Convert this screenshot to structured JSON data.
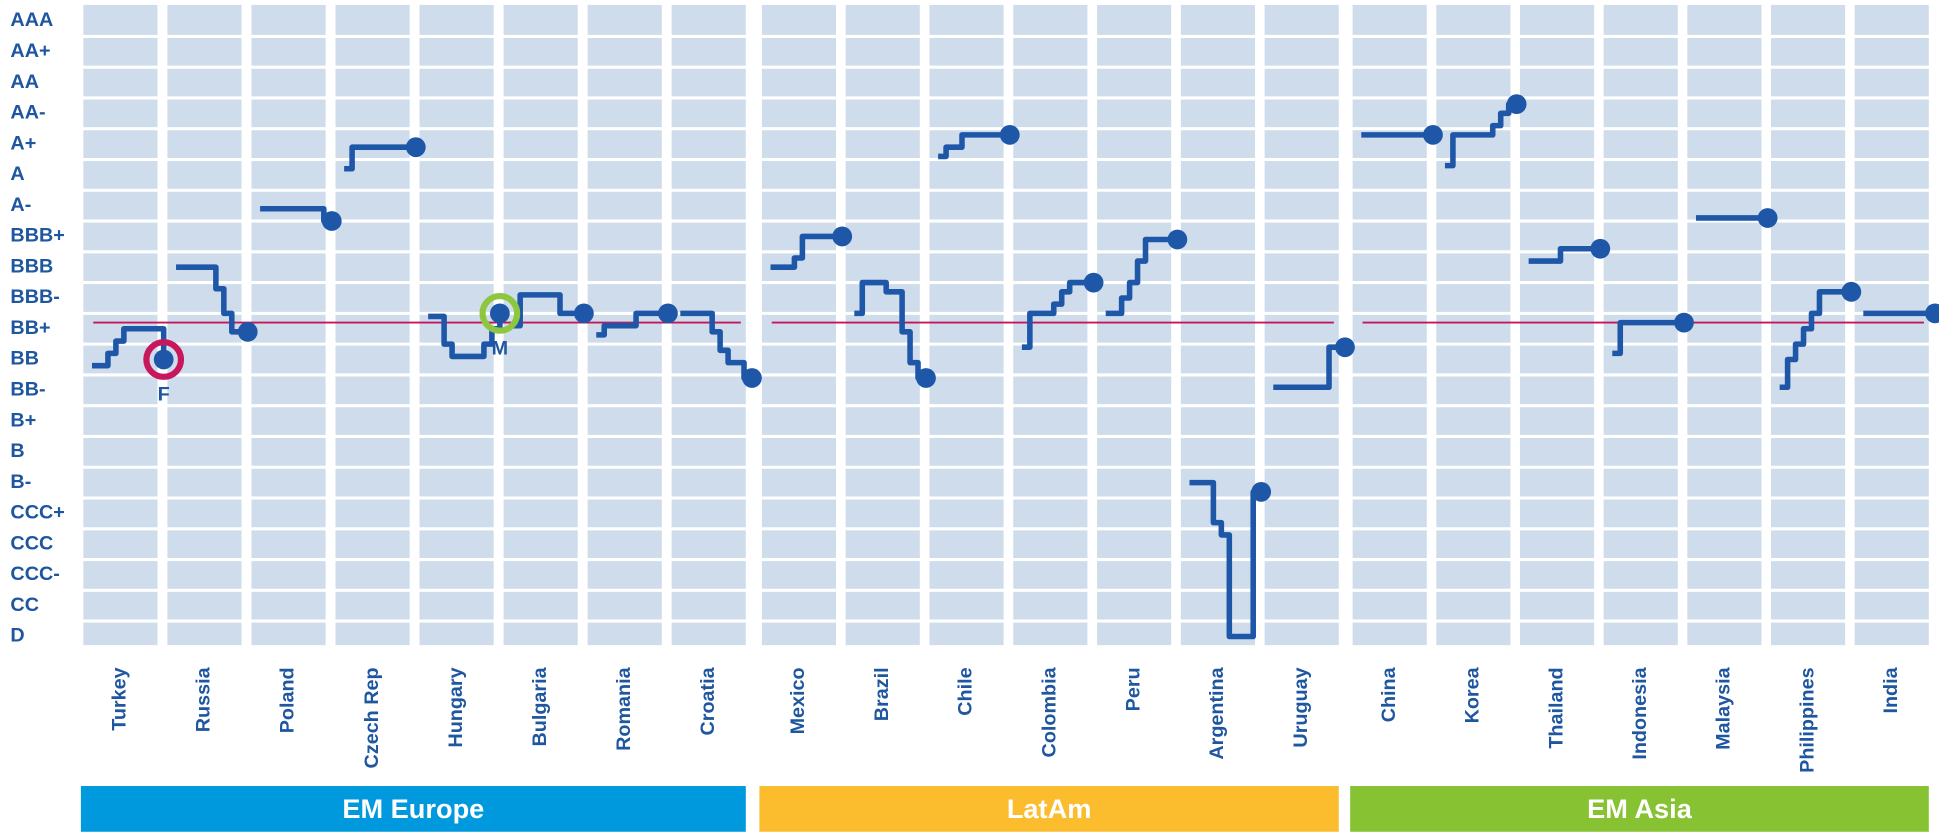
{
  "chart_data": {
    "type": "line",
    "ylim": [
      0,
      20
    ],
    "yticks": [
      {
        "value": 20,
        "label": "AAA"
      },
      {
        "value": 19,
        "label": "AA+"
      },
      {
        "value": 18,
        "label": "AA"
      },
      {
        "value": 17,
        "label": "AA-"
      },
      {
        "value": 16,
        "label": "A+"
      },
      {
        "value": 15,
        "label": "A"
      },
      {
        "value": 14,
        "label": "A-"
      },
      {
        "value": 13,
        "label": "BBB+"
      },
      {
        "value": 12,
        "label": "BBB"
      },
      {
        "value": 11,
        "label": "BBB-"
      },
      {
        "value": 10,
        "label": "BB+"
      },
      {
        "value": 9,
        "label": "BB"
      },
      {
        "value": 8,
        "label": "BB-"
      },
      {
        "value": 7,
        "label": "B+"
      },
      {
        "value": 6,
        "label": "B"
      },
      {
        "value": 5,
        "label": "B-"
      },
      {
        "value": 4,
        "label": "CCC+"
      },
      {
        "value": 3,
        "label": "CCC"
      },
      {
        "value": 2,
        "label": "CCC-"
      },
      {
        "value": 1,
        "label": "CC"
      },
      {
        "value": 0,
        "label": "D"
      }
    ],
    "line_color": "#1f57a8",
    "reference_line": {
      "value": 10.2,
      "color": "#c2185b"
    },
    "groups": [
      {
        "name": "EM Europe",
        "color": "#0099dd",
        "series": [
          {
            "name": "Turkey",
            "color": "#1f57a8",
            "values": [
              8.8,
              8.8,
              9.2,
              9.6,
              10,
              10,
              10,
              10,
              10,
              9
            ]
          },
          {
            "name": "Russia",
            "color": "#1f57a8",
            "values": [
              12,
              12,
              12,
              12,
              12,
              11.3,
              10.5,
              9.9,
              9.9,
              9.9
            ]
          },
          {
            "name": "Poland",
            "color": "#1f57a8",
            "values": [
              13.9,
              13.9,
              13.9,
              13.9,
              13.9,
              13.9,
              13.9,
              13.9,
              13.5,
              13.5
            ]
          },
          {
            "name": "Czech Rep",
            "color": "#1f57a8",
            "values": [
              15.2,
              15.9,
              15.9,
              15.9,
              15.9,
              15.9,
              15.9,
              15.9,
              15.9,
              15.9
            ]
          },
          {
            "name": "Hungary",
            "color": "#1f57a8",
            "values": [
              10.4,
              10.4,
              9.5,
              9.1,
              9.1,
              9.1,
              9.1,
              9.5,
              10,
              10.5
            ]
          },
          {
            "name": "Bulgaria",
            "color": "#1f57a8",
            "values": [
              10.1,
              11.1,
              11.1,
              11.1,
              11.1,
              11.1,
              10.5,
              10.5,
              10.5,
              10.5
            ]
          },
          {
            "name": "Romania",
            "color": "#1f57a8",
            "values": [
              9.8,
              10.1,
              10.1,
              10.1,
              10.1,
              10.5,
              10.5,
              10.5,
              10.5,
              10.5
            ]
          },
          {
            "name": "Croatia",
            "color": "#1f57a8",
            "values": [
              10.5,
              10.5,
              10.5,
              10.5,
              9.9,
              9.3,
              8.9,
              8.9,
              8.4,
              8.4
            ]
          }
        ]
      },
      {
        "name": "LatAm",
        "color": "#fbbd2e",
        "series": [
          {
            "name": "Mexico",
            "color": "#1f57a8",
            "values": [
              12,
              12,
              12,
              12.3,
              13,
              13,
              13,
              13,
              13,
              13
            ]
          },
          {
            "name": "Brazil",
            "color": "#1f57a8",
            "values": [
              10.5,
              11.5,
              11.5,
              11.5,
              11.2,
              11.2,
              9.9,
              8.9,
              8.4,
              8.4
            ]
          },
          {
            "name": "Chile",
            "color": "#1f57a8",
            "values": [
              15.6,
              15.9,
              15.9,
              16.3,
              16.3,
              16.3,
              16.3,
              16.3,
              16.3,
              16.3
            ]
          },
          {
            "name": "Colombia",
            "color": "#1f57a8",
            "values": [
              9.4,
              10.5,
              10.5,
              10.5,
              10.8,
              11.2,
              11.5,
              11.5,
              11.5,
              11.5
            ]
          },
          {
            "name": "Peru",
            "color": "#1f57a8",
            "values": [
              10.5,
              10.5,
              11,
              11.5,
              12.2,
              12.9,
              12.9,
              12.9,
              12.9,
              12.9
            ]
          },
          {
            "name": "Argentina",
            "color": "#1f57a8",
            "values": [
              5,
              5,
              5,
              3.7,
              3.3,
              0,
              0,
              0,
              4.7,
              4.7
            ]
          },
          {
            "name": "Uruguay",
            "color": "#1f57a8",
            "values": [
              8.1,
              8.1,
              8.1,
              8.1,
              8.1,
              8.1,
              8.1,
              9.4,
              9.4,
              9.4
            ]
          }
        ]
      },
      {
        "name": "EM Asia",
        "color": "#86c232",
        "series": [
          {
            "name": "China",
            "color": "#1f57a8",
            "values": [
              16.3,
              16.3,
              16.3,
              16.3,
              16.3,
              16.3,
              16.3,
              16.3,
              16.3,
              16.3
            ]
          },
          {
            "name": "Korea",
            "color": "#1f57a8",
            "values": [
              15.3,
              16.3,
              16.3,
              16.3,
              16.3,
              16.3,
              16.6,
              17,
              17.3,
              17.3
            ]
          },
          {
            "name": "Thailand",
            "color": "#1f57a8",
            "values": [
              12.2,
              12.2,
              12.2,
              12.2,
              12.6,
              12.6,
              12.6,
              12.6,
              12.6,
              12.6
            ]
          },
          {
            "name": "Indonesia",
            "color": "#1f57a8",
            "values": [
              9.2,
              10.2,
              10.2,
              10.2,
              10.2,
              10.2,
              10.2,
              10.2,
              10.2,
              10.2
            ]
          },
          {
            "name": "Malaysia",
            "color": "#1f57a8",
            "values": [
              13.6,
              13.6,
              13.6,
              13.6,
              13.6,
              13.6,
              13.6,
              13.6,
              13.6,
              13.6
            ]
          },
          {
            "name": "Philippines",
            "color": "#1f57a8",
            "values": [
              8.1,
              9,
              9.5,
              10,
              10.5,
              11.2,
              11.2,
              11.2,
              11.2,
              11.2
            ]
          },
          {
            "name": "India",
            "color": "#1f57a8",
            "values": [
              10.5,
              10.5,
              10.5,
              10.5,
              10.5,
              10.5,
              10.5,
              10.5,
              10.5,
              10.5
            ]
          }
        ]
      }
    ],
    "annotations": [
      {
        "text": "F",
        "color": "#c8175d"
      },
      {
        "text": "M",
        "color": "#8dc63f"
      }
    ]
  }
}
